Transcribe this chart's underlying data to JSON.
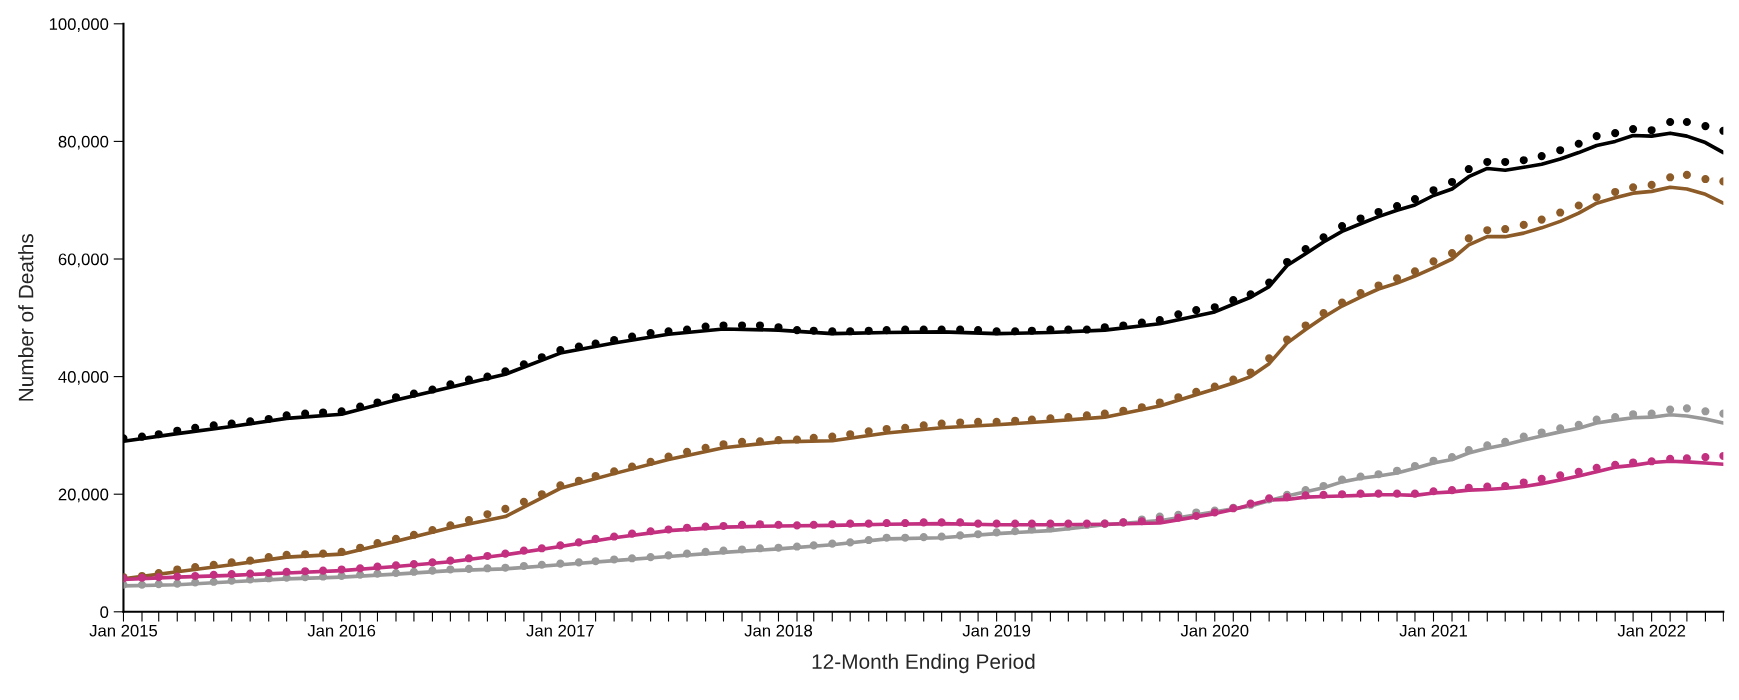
{
  "chart_data": {
    "type": "line",
    "xlabel": "12-Month Ending Period",
    "ylabel": "Number of Deaths",
    "xlim": [
      "2015-01",
      "2022-05"
    ],
    "ylim": [
      0,
      100000
    ],
    "yticks": [
      {
        "value": 0,
        "label": "0"
      },
      {
        "value": 20000,
        "label": "20,000"
      },
      {
        "value": 40000,
        "label": "40,000"
      },
      {
        "value": 60000,
        "label": "60,000"
      },
      {
        "value": 80000,
        "label": "80,000"
      },
      {
        "value": 100000,
        "label": "100,000"
      }
    ],
    "xticks": [
      {
        "value": "2015-01",
        "label": "Jan 2015"
      },
      {
        "value": "2015-02",
        "label": null
      },
      {
        "value": "2015-03",
        "label": null
      },
      {
        "value": "2015-04",
        "label": null
      },
      {
        "value": "2015-05",
        "label": null
      },
      {
        "value": "2015-06",
        "label": null
      },
      {
        "value": "2015-07",
        "label": null
      },
      {
        "value": "2015-08",
        "label": null
      },
      {
        "value": "2015-09",
        "label": null
      },
      {
        "value": "2015-10",
        "label": null
      },
      {
        "value": "2015-11",
        "label": null
      },
      {
        "value": "2015-12",
        "label": null
      },
      {
        "value": "2016-01",
        "label": "Jan 2016"
      },
      {
        "value": "2016-02",
        "label": null
      },
      {
        "value": "2016-03",
        "label": null
      },
      {
        "value": "2016-04",
        "label": null
      },
      {
        "value": "2016-05",
        "label": null
      },
      {
        "value": "2016-06",
        "label": null
      },
      {
        "value": "2016-07",
        "label": null
      },
      {
        "value": "2016-08",
        "label": null
      },
      {
        "value": "2016-09",
        "label": null
      },
      {
        "value": "2016-10",
        "label": null
      },
      {
        "value": "2016-11",
        "label": null
      },
      {
        "value": "2016-12",
        "label": null
      },
      {
        "value": "2017-01",
        "label": "Jan 2017"
      },
      {
        "value": "2017-02",
        "label": null
      },
      {
        "value": "2017-03",
        "label": null
      },
      {
        "value": "2017-04",
        "label": null
      },
      {
        "value": "2017-05",
        "label": null
      },
      {
        "value": "2017-06",
        "label": null
      },
      {
        "value": "2017-07",
        "label": null
      },
      {
        "value": "2017-08",
        "label": null
      },
      {
        "value": "2017-09",
        "label": null
      },
      {
        "value": "2017-10",
        "label": null
      },
      {
        "value": "2017-11",
        "label": null
      },
      {
        "value": "2017-12",
        "label": null
      },
      {
        "value": "2018-01",
        "label": "Jan 2018"
      },
      {
        "value": "2018-02",
        "label": null
      },
      {
        "value": "2018-03",
        "label": null
      },
      {
        "value": "2018-04",
        "label": null
      },
      {
        "value": "2018-05",
        "label": null
      },
      {
        "value": "2018-06",
        "label": null
      },
      {
        "value": "2018-07",
        "label": null
      },
      {
        "value": "2018-08",
        "label": null
      },
      {
        "value": "2018-09",
        "label": null
      },
      {
        "value": "2018-10",
        "label": null
      },
      {
        "value": "2018-11",
        "label": null
      },
      {
        "value": "2018-12",
        "label": null
      },
      {
        "value": "2019-01",
        "label": "Jan 2019"
      },
      {
        "value": "2019-02",
        "label": null
      },
      {
        "value": "2019-03",
        "label": null
      },
      {
        "value": "2019-04",
        "label": null
      },
      {
        "value": "2019-05",
        "label": null
      },
      {
        "value": "2019-06",
        "label": null
      },
      {
        "value": "2019-07",
        "label": null
      },
      {
        "value": "2019-08",
        "label": null
      },
      {
        "value": "2019-09",
        "label": null
      },
      {
        "value": "2019-10",
        "label": null
      },
      {
        "value": "2019-11",
        "label": null
      },
      {
        "value": "2019-12",
        "label": null
      },
      {
        "value": "2020-01",
        "label": "Jan 2020"
      },
      {
        "value": "2020-02",
        "label": null
      },
      {
        "value": "2020-03",
        "label": null
      },
      {
        "value": "2020-04",
        "label": null
      },
      {
        "value": "2020-05",
        "label": null
      },
      {
        "value": "2020-06",
        "label": null
      },
      {
        "value": "2020-07",
        "label": null
      },
      {
        "value": "2020-08",
        "label": null
      },
      {
        "value": "2020-09",
        "label": null
      },
      {
        "value": "2020-10",
        "label": null
      },
      {
        "value": "2020-11",
        "label": null
      },
      {
        "value": "2020-12",
        "label": null
      },
      {
        "value": "2021-01",
        "label": "Jan 2021"
      },
      {
        "value": "2021-02",
        "label": null
      },
      {
        "value": "2021-03",
        "label": null
      },
      {
        "value": "2021-04",
        "label": null
      },
      {
        "value": "2021-05",
        "label": null
      },
      {
        "value": "2021-06",
        "label": null
      },
      {
        "value": "2021-07",
        "label": null
      },
      {
        "value": "2021-08",
        "label": null
      },
      {
        "value": "2021-09",
        "label": null
      },
      {
        "value": "2021-10",
        "label": null
      },
      {
        "value": "2021-11",
        "label": null
      },
      {
        "value": "2021-12",
        "label": null
      },
      {
        "value": "2022-01",
        "label": "Jan 2022"
      },
      {
        "value": "2022-02",
        "label": null
      },
      {
        "value": "2022-03",
        "label": null
      },
      {
        "value": "2022-04",
        "label": null
      },
      {
        "value": "2022-05",
        "label": null
      }
    ],
    "x": [
      "2015-01",
      "2015-02",
      "2015-03",
      "2015-04",
      "2015-05",
      "2015-06",
      "2015-07",
      "2015-08",
      "2015-09",
      "2015-10",
      "2015-11",
      "2015-12",
      "2016-01",
      "2016-02",
      "2016-03",
      "2016-04",
      "2016-05",
      "2016-06",
      "2016-07",
      "2016-08",
      "2016-09",
      "2016-10",
      "2016-11",
      "2016-12",
      "2017-01",
      "2017-02",
      "2017-03",
      "2017-04",
      "2017-05",
      "2017-06",
      "2017-07",
      "2017-08",
      "2017-09",
      "2017-10",
      "2017-11",
      "2017-12",
      "2018-01",
      "2018-02",
      "2018-03",
      "2018-04",
      "2018-05",
      "2018-06",
      "2018-07",
      "2018-08",
      "2018-09",
      "2018-10",
      "2018-11",
      "2018-12",
      "2019-01",
      "2019-02",
      "2019-03",
      "2019-04",
      "2019-05",
      "2019-06",
      "2019-07",
      "2019-08",
      "2019-09",
      "2019-10",
      "2019-11",
      "2019-12",
      "2020-01",
      "2020-02",
      "2020-03",
      "2020-04",
      "2020-05",
      "2020-06",
      "2020-07",
      "2020-08",
      "2020-09",
      "2020-10",
      "2020-11",
      "2020-12",
      "2021-01",
      "2021-02",
      "2021-03",
      "2021-04",
      "2021-05",
      "2021-06",
      "2021-07",
      "2021-08",
      "2021-09",
      "2021-10",
      "2021-11",
      "2021-12",
      "2022-01",
      "2022-02",
      "2022-03",
      "2022-04",
      "2022-05"
    ],
    "series": [
      {
        "color": "#000000",
        "x": [
          "2015-01",
          "2015-04",
          "2015-07",
          "2015-10",
          "2016-01",
          "2016-04",
          "2016-07",
          "2016-10",
          "2017-01",
          "2017-04",
          "2017-07",
          "2017-10",
          "2018-01",
          "2018-04",
          "2018-07",
          "2018-10",
          "2019-01",
          "2019-04",
          "2019-07",
          "2019-10",
          "2020-01",
          "2020-02",
          "2020-03",
          "2020-04",
          "2020-05",
          "2020-06",
          "2020-07",
          "2020-08",
          "2020-09",
          "2020-10",
          "2020-11",
          "2020-12",
          "2021-01",
          "2021-02",
          "2021-03",
          "2021-04",
          "2021-05",
          "2021-06",
          "2021-07",
          "2021-08",
          "2021-09",
          "2021-10",
          "2021-11",
          "2021-12",
          "2022-01",
          "2022-02",
          "2022-03",
          "2022-04",
          "2022-05"
        ],
        "values": [
          29000,
          30300,
          31500,
          32900,
          33600,
          36000,
          38200,
          40400,
          44000,
          45700,
          47200,
          48100,
          47900,
          47300,
          47500,
          47600,
          47300,
          47500,
          47900,
          49000,
          51000,
          52300,
          53500,
          55300,
          58900,
          60900,
          62900,
          64700,
          66000,
          67200,
          68300,
          69200,
          70800,
          71900,
          74000,
          75400,
          75100,
          75600,
          76100,
          77000,
          78100,
          79300,
          80000,
          81000,
          80900,
          81400,
          80900,
          79800,
          78100
        ]
      },
      {
        "color": "#8c5b27",
        "x": [
          "2015-01",
          "2015-04",
          "2015-07",
          "2015-10",
          "2016-01",
          "2016-04",
          "2016-07",
          "2016-10",
          "2017-01",
          "2017-04",
          "2017-07",
          "2017-10",
          "2018-01",
          "2018-04",
          "2018-07",
          "2018-10",
          "2019-01",
          "2019-04",
          "2019-07",
          "2019-10",
          "2020-01",
          "2020-02",
          "2020-03",
          "2020-04",
          "2020-05",
          "2020-06",
          "2020-07",
          "2020-08",
          "2020-09",
          "2020-10",
          "2020-11",
          "2020-12",
          "2021-01",
          "2021-02",
          "2021-03",
          "2021-04",
          "2021-05",
          "2021-06",
          "2021-07",
          "2021-08",
          "2021-09",
          "2021-10",
          "2021-11",
          "2021-12",
          "2022-01",
          "2022-02",
          "2022-03",
          "2022-04",
          "2022-05"
        ],
        "values": [
          5600,
          6800,
          8000,
          9300,
          9800,
          12000,
          14300,
          16200,
          21000,
          23500,
          25900,
          27900,
          28900,
          29100,
          30400,
          31300,
          31800,
          32400,
          33100,
          35000,
          37900,
          38900,
          40000,
          42200,
          45700,
          48000,
          50100,
          52000,
          53500,
          54900,
          55900,
          57100,
          58500,
          60000,
          62400,
          63800,
          63800,
          64400,
          65300,
          66400,
          67800,
          69500,
          70400,
          71200,
          71500,
          72200,
          71900,
          71000,
          69500
        ]
      },
      {
        "color": "#999999",
        "x": [
          "2015-01",
          "2015-04",
          "2015-07",
          "2015-10",
          "2016-01",
          "2016-04",
          "2016-07",
          "2016-10",
          "2017-01",
          "2017-04",
          "2017-07",
          "2017-10",
          "2018-01",
          "2018-04",
          "2018-07",
          "2018-10",
          "2019-01",
          "2019-04",
          "2019-07",
          "2019-10",
          "2020-01",
          "2020-02",
          "2020-03",
          "2020-04",
          "2020-05",
          "2020-06",
          "2020-07",
          "2020-08",
          "2020-09",
          "2020-10",
          "2020-11",
          "2020-12",
          "2021-01",
          "2021-02",
          "2021-03",
          "2021-04",
          "2021-05",
          "2021-06",
          "2021-07",
          "2021-08",
          "2021-09",
          "2021-10",
          "2021-11",
          "2021-12",
          "2022-01",
          "2022-02",
          "2022-03",
          "2022-04",
          "2022-05"
        ],
        "values": [
          4400,
          4600,
          5100,
          5600,
          5900,
          6400,
          7000,
          7300,
          8000,
          8700,
          9400,
          10100,
          10700,
          11400,
          12400,
          12600,
          13300,
          13800,
          14800,
          15500,
          17000,
          17500,
          18000,
          18900,
          19700,
          20400,
          21100,
          22100,
          22700,
          23100,
          23600,
          24400,
          25300,
          25900,
          27000,
          27800,
          28400,
          29200,
          29900,
          30600,
          31200,
          32100,
          32600,
          33000,
          33100,
          33500,
          33300,
          32800,
          32100
        ]
      },
      {
        "color": "#c2307f",
        "x": [
          "2015-01",
          "2015-04",
          "2015-07",
          "2015-10",
          "2016-01",
          "2016-04",
          "2016-07",
          "2016-10",
          "2017-01",
          "2017-04",
          "2017-07",
          "2017-10",
          "2018-01",
          "2018-04",
          "2018-07",
          "2018-10",
          "2019-01",
          "2019-04",
          "2019-07",
          "2019-10",
          "2020-01",
          "2020-02",
          "2020-03",
          "2020-04",
          "2020-05",
          "2020-06",
          "2020-07",
          "2020-08",
          "2020-09",
          "2020-10",
          "2020-11",
          "2020-12",
          "2021-01",
          "2021-02",
          "2021-03",
          "2021-04",
          "2021-05",
          "2021-06",
          "2021-07",
          "2021-08",
          "2021-09",
          "2021-10",
          "2021-11",
          "2021-12",
          "2022-01",
          "2022-02",
          "2022-03",
          "2022-04",
          "2022-05"
        ],
        "values": [
          5500,
          5900,
          6200,
          6600,
          7000,
          7700,
          8500,
          9700,
          11100,
          12600,
          13800,
          14400,
          14600,
          14700,
          14900,
          15000,
          14800,
          14800,
          14900,
          15100,
          16700,
          17400,
          18200,
          19000,
          19100,
          19500,
          19600,
          19700,
          19800,
          19900,
          19900,
          19800,
          20200,
          20400,
          20700,
          20800,
          21000,
          21300,
          21800,
          22400,
          23100,
          23800,
          24600,
          24900,
          25400,
          25600,
          25500,
          25300,
          25100
        ]
      },
      {
        "type": "scatter",
        "marker": "circle",
        "color": "#000000",
        "values": [
          29500,
          29800,
          30200,
          30800,
          31300,
          31700,
          32000,
          32400,
          32800,
          33400,
          33700,
          33900,
          34100,
          34900,
          35600,
          36500,
          37100,
          37800,
          38700,
          39500,
          40000,
          40900,
          42100,
          43300,
          44500,
          45100,
          45600,
          46200,
          46800,
          47400,
          47700,
          48000,
          48500,
          48700,
          48700,
          48700,
          48400,
          47900,
          47800,
          47700,
          47700,
          47800,
          47900,
          48000,
          48000,
          48000,
          48000,
          47900,
          47700,
          47700,
          47800,
          48000,
          48000,
          48000,
          48400,
          48700,
          49200,
          49600,
          50600,
          51300,
          51800,
          53000,
          54000,
          56000,
          59500,
          61700,
          63700,
          65600,
          66900,
          68000,
          69000,
          70200,
          71700,
          73100,
          75300,
          76500,
          76500,
          76800,
          77500,
          78500,
          79600,
          80900,
          81400,
          82100,
          81900,
          83300,
          83300,
          82600,
          81800
        ]
      },
      {
        "type": "scatter",
        "marker": "circle",
        "color": "#8c5b27",
        "values": [
          5900,
          6100,
          6600,
          7200,
          7600,
          8000,
          8400,
          8700,
          9300,
          9700,
          9800,
          9900,
          10200,
          10900,
          11700,
          12400,
          13100,
          13900,
          14700,
          15600,
          16600,
          17500,
          18700,
          20000,
          21500,
          22300,
          23100,
          23900,
          24700,
          25500,
          26400,
          27200,
          27900,
          28500,
          28900,
          29000,
          29200,
          29300,
          29600,
          29800,
          30200,
          30700,
          31100,
          31300,
          31700,
          32000,
          32200,
          32300,
          32300,
          32500,
          32700,
          32900,
          33100,
          33400,
          33700,
          34200,
          34800,
          35600,
          36500,
          37400,
          38300,
          39500,
          40700,
          43100,
          46300,
          48700,
          50800,
          52600,
          54200,
          55500,
          56700,
          57900,
          59600,
          61000,
          63500,
          64900,
          65100,
          65800,
          66700,
          67900,
          69100,
          70500,
          71400,
          72200,
          72600,
          73900,
          74300,
          73600,
          73200
        ]
      },
      {
        "type": "scatter",
        "marker": "circle",
        "color": "#999999",
        "values": [
          4600,
          4600,
          4700,
          4800,
          5000,
          5100,
          5300,
          5500,
          5700,
          5800,
          5900,
          6000,
          6100,
          6300,
          6500,
          6600,
          6800,
          7000,
          7200,
          7300,
          7400,
          7500,
          7800,
          8000,
          8200,
          8400,
          8600,
          8900,
          9100,
          9300,
          9600,
          9900,
          10200,
          10400,
          10600,
          10800,
          10900,
          11100,
          11300,
          11600,
          11800,
          12200,
          12600,
          12600,
          12700,
          12800,
          13000,
          13200,
          13500,
          13700,
          14000,
          14200,
          14500,
          14800,
          15000,
          15200,
          15700,
          16200,
          16500,
          16900,
          17200,
          17700,
          18200,
          19100,
          19900,
          20700,
          21400,
          22500,
          23000,
          23400,
          24000,
          24800,
          25700,
          26300,
          27500,
          28300,
          28900,
          29800,
          30500,
          31200,
          31800,
          32700,
          33100,
          33600,
          33700,
          34400,
          34600,
          34100,
          33700
        ]
      },
      {
        "type": "scatter",
        "marker": "circle",
        "color": "#c2307f",
        "values": [
          5700,
          5800,
          5900,
          6000,
          6100,
          6300,
          6400,
          6500,
          6600,
          6800,
          6900,
          7000,
          7200,
          7400,
          7700,
          7900,
          8100,
          8400,
          8700,
          9100,
          9500,
          9900,
          10400,
          10800,
          11300,
          11800,
          12400,
          12800,
          13300,
          13700,
          14000,
          14300,
          14500,
          14600,
          14800,
          14900,
          14800,
          14700,
          14800,
          14900,
          15000,
          15000,
          15100,
          15100,
          15200,
          15200,
          15200,
          15000,
          15000,
          15000,
          15000,
          15000,
          15000,
          15000,
          15000,
          15200,
          15400,
          15700,
          16000,
          16300,
          16900,
          17600,
          18400,
          19300,
          19500,
          19800,
          19900,
          20000,
          20100,
          20100,
          20100,
          20100,
          20500,
          20700,
          21100,
          21300,
          21400,
          22000,
          22600,
          23200,
          23800,
          24500,
          25000,
          25400,
          25600,
          26000,
          26100,
          26300,
          26500
        ]
      }
    ]
  }
}
